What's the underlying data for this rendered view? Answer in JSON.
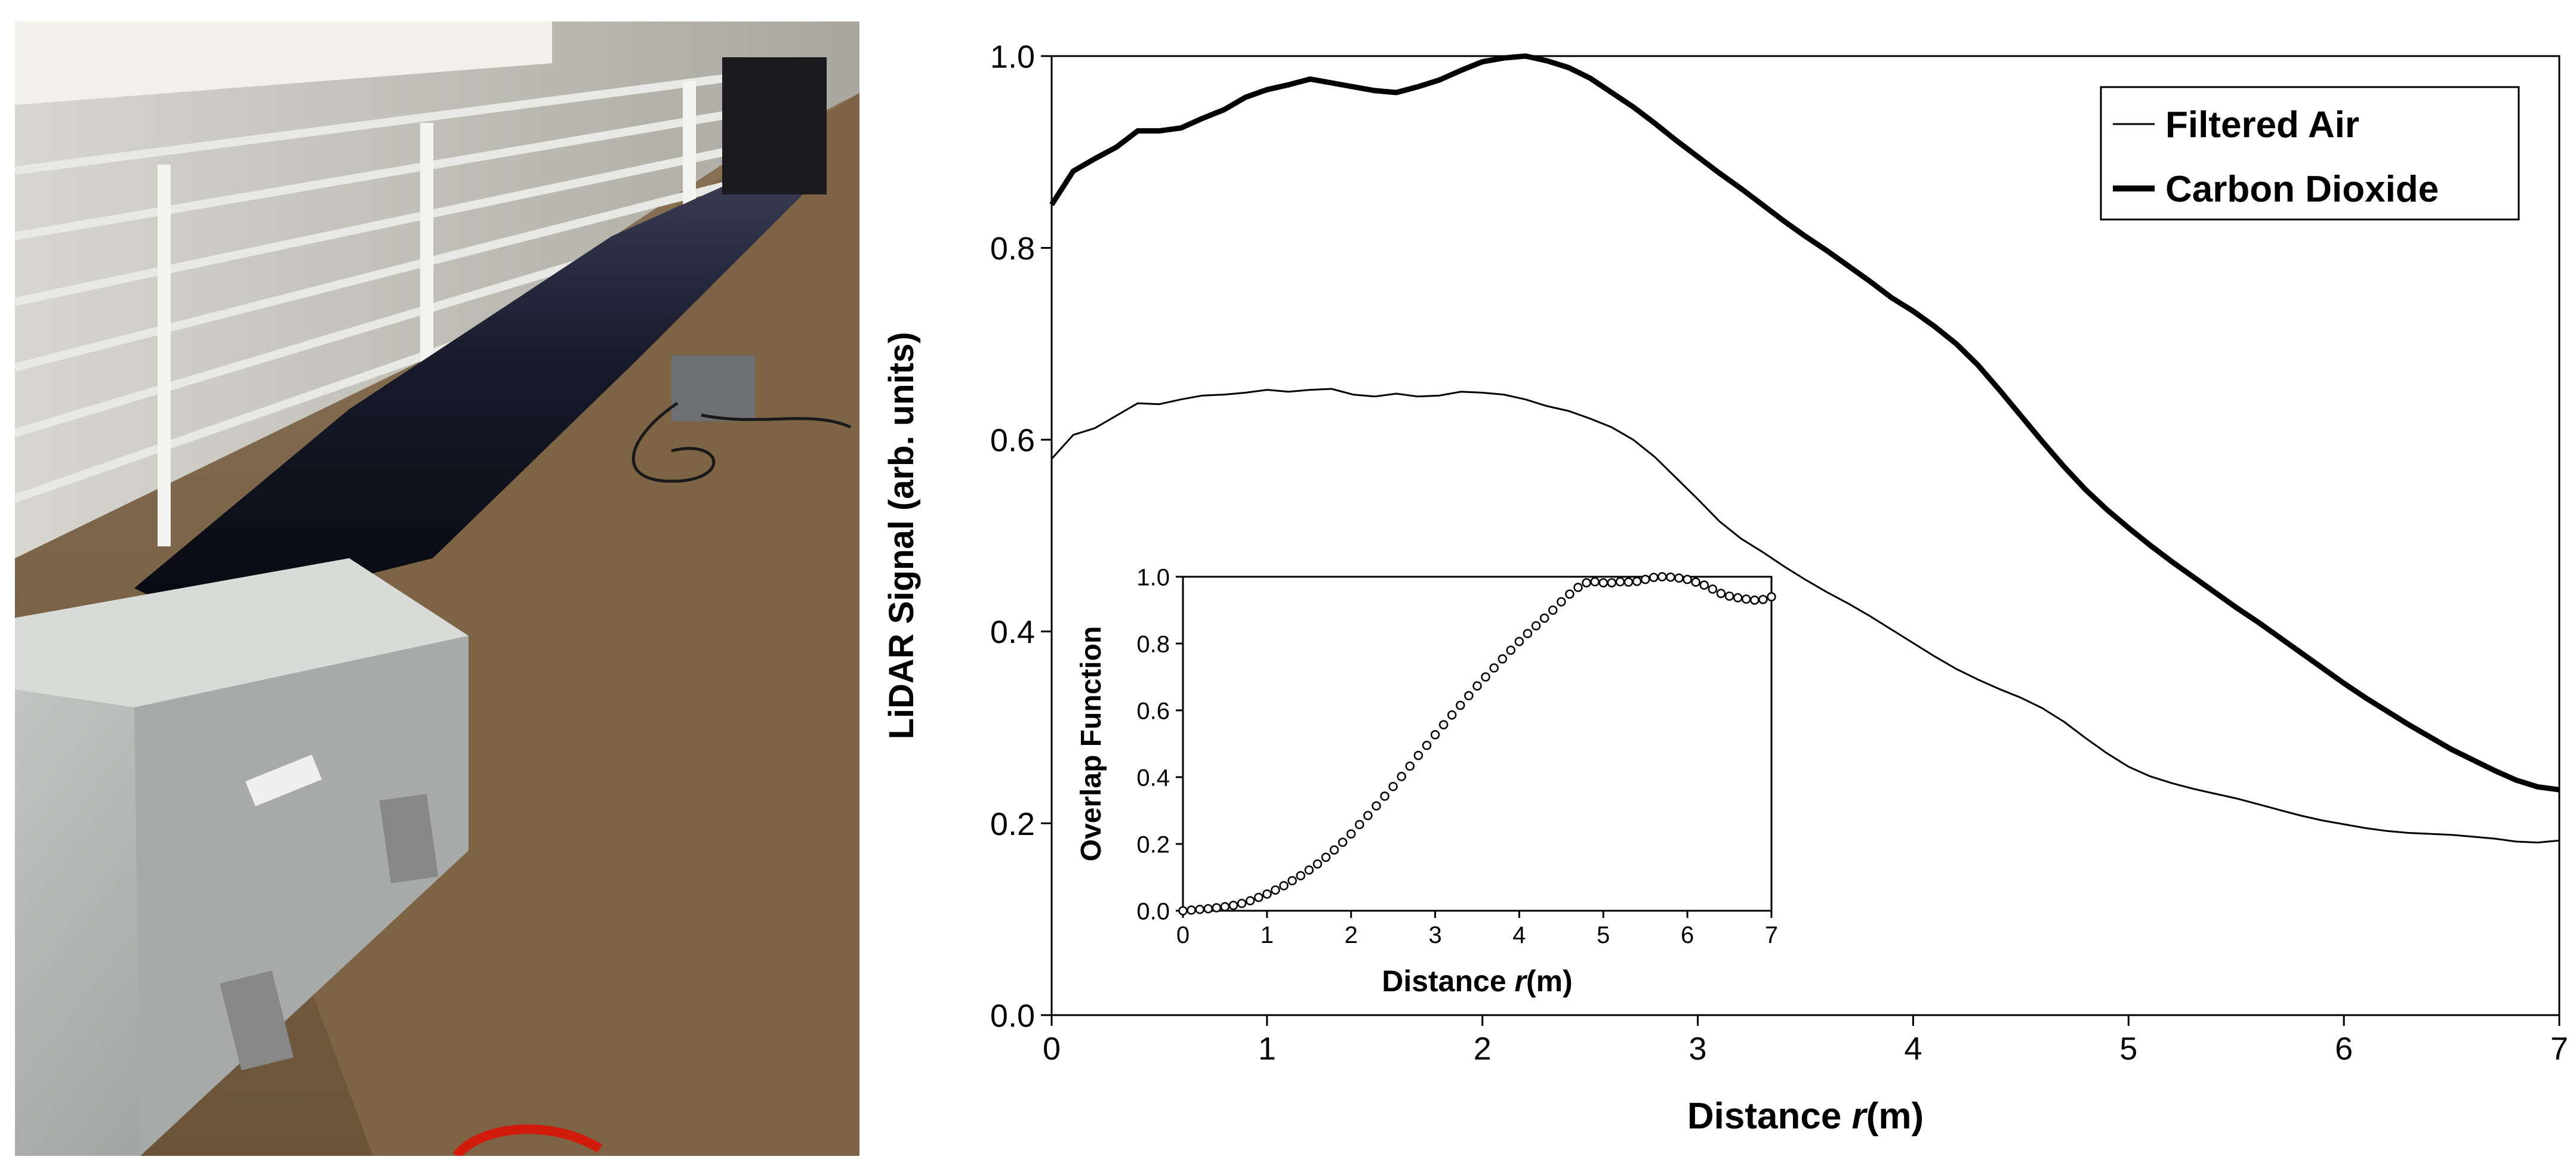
{
  "figure": {
    "photo_description_icon": "lidar-test-tube-photo"
  },
  "chart_data": [
    {
      "type": "line",
      "xlabel_prefix": "Distance ",
      "xlabel_italic": "r",
      "xlabel_suffix": "(m)",
      "ylabel": "LiDAR Signal (arb. units)",
      "xlim": [
        0,
        7
      ],
      "ylim": [
        0,
        1.0
      ],
      "xticks": [
        "0",
        "1",
        "2",
        "3",
        "4",
        "5",
        "6",
        "7"
      ],
      "yticks": [
        "0.0",
        "0.2",
        "0.4",
        "0.6",
        "0.8",
        "1.0"
      ],
      "grid": false,
      "legend_position": "top-right",
      "series": [
        {
          "name": "Filtered Air",
          "color": "#000000",
          "style": "thin",
          "x": [
            0,
            0.1,
            0.2,
            0.3,
            0.4,
            0.5,
            0.6,
            0.7,
            0.8,
            0.9,
            1.0,
            1.1,
            1.2,
            1.3,
            1.4,
            1.5,
            1.6,
            1.7,
            1.8,
            1.9,
            2.0,
            2.1,
            2.2,
            2.3,
            2.4,
            2.5,
            2.6,
            2.7,
            2.8,
            2.9,
            3.0,
            3.1,
            3.2,
            3.3,
            3.4,
            3.5,
            3.6,
            3.7,
            3.8,
            3.9,
            4.0,
            4.1,
            4.2,
            4.3,
            4.4,
            4.5,
            4.6,
            4.7,
            4.8,
            4.9,
            5.0,
            5.1,
            5.2,
            5.3,
            5.4,
            5.5,
            5.6,
            5.7,
            5.8,
            5.9,
            6.0,
            6.1,
            6.2,
            6.3,
            6.4,
            6.5,
            6.6,
            6.7,
            6.8,
            6.9,
            7.0
          ],
          "y": [
            0.58,
            0.605,
            0.612,
            0.625,
            0.638,
            0.637,
            0.642,
            0.646,
            0.647,
            0.649,
            0.652,
            0.65,
            0.652,
            0.653,
            0.647,
            0.645,
            0.648,
            0.645,
            0.646,
            0.65,
            0.649,
            0.647,
            0.642,
            0.635,
            0.63,
            0.622,
            0.613,
            0.6,
            0.582,
            0.56,
            0.538,
            0.515,
            0.497,
            0.483,
            0.468,
            0.454,
            0.441,
            0.429,
            0.416,
            0.402,
            0.388,
            0.374,
            0.361,
            0.35,
            0.34,
            0.331,
            0.32,
            0.306,
            0.289,
            0.273,
            0.259,
            0.249,
            0.242,
            0.236,
            0.231,
            0.226,
            0.22,
            0.214,
            0.208,
            0.203,
            0.199,
            0.195,
            0.192,
            0.19,
            0.189,
            0.188,
            0.186,
            0.184,
            0.181,
            0.18,
            0.182
          ]
        },
        {
          "name": "Carbon Dioxide",
          "color": "#000000",
          "style": "thick",
          "x": [
            0,
            0.1,
            0.2,
            0.3,
            0.4,
            0.5,
            0.6,
            0.7,
            0.8,
            0.9,
            1.0,
            1.1,
            1.2,
            1.3,
            1.4,
            1.5,
            1.6,
            1.7,
            1.8,
            1.9,
            2.0,
            2.1,
            2.2,
            2.3,
            2.4,
            2.5,
            2.6,
            2.7,
            2.8,
            2.9,
            3.0,
            3.1,
            3.2,
            3.3,
            3.4,
            3.5,
            3.6,
            3.7,
            3.8,
            3.9,
            4.0,
            4.1,
            4.2,
            4.3,
            4.4,
            4.5,
            4.6,
            4.7,
            4.8,
            4.9,
            5.0,
            5.1,
            5.2,
            5.3,
            5.4,
            5.5,
            5.6,
            5.7,
            5.8,
            5.9,
            6.0,
            6.1,
            6.2,
            6.3,
            6.4,
            6.5,
            6.6,
            6.7,
            6.8,
            6.9,
            7.0
          ],
          "y": [
            0.845,
            0.88,
            0.893,
            0.905,
            0.922,
            0.922,
            0.925,
            0.935,
            0.944,
            0.957,
            0.965,
            0.97,
            0.976,
            0.972,
            0.968,
            0.964,
            0.962,
            0.968,
            0.975,
            0.985,
            0.994,
            0.998,
            1.0,
            0.995,
            0.988,
            0.977,
            0.962,
            0.947,
            0.93,
            0.912,
            0.895,
            0.878,
            0.862,
            0.845,
            0.828,
            0.812,
            0.797,
            0.781,
            0.765,
            0.748,
            0.734,
            0.718,
            0.7,
            0.678,
            0.652,
            0.625,
            0.598,
            0.572,
            0.548,
            0.527,
            0.508,
            0.49,
            0.473,
            0.457,
            0.441,
            0.425,
            0.41,
            0.394,
            0.378,
            0.362,
            0.346,
            0.331,
            0.317,
            0.303,
            0.29,
            0.277,
            0.266,
            0.255,
            0.245,
            0.238,
            0.235
          ]
        }
      ]
    },
    {
      "type": "scatter",
      "xlabel_prefix": "Distance ",
      "xlabel_italic": "r",
      "xlabel_suffix": "(m)",
      "ylabel": "Overlap Function",
      "xlim": [
        0,
        7
      ],
      "ylim": [
        0,
        1.0
      ],
      "xticks": [
        "0",
        "1",
        "2",
        "3",
        "4",
        "5",
        "6",
        "7"
      ],
      "yticks": [
        "0.0",
        "0.2",
        "0.4",
        "0.6",
        "0.8",
        "1.0"
      ],
      "grid": false,
      "series": [
        {
          "color": "#000000",
          "marker": "open-circle",
          "x": [
            0,
            0.1,
            0.2,
            0.3,
            0.4,
            0.5,
            0.6,
            0.7,
            0.8,
            0.9,
            1.0,
            1.1,
            1.2,
            1.3,
            1.4,
            1.5,
            1.6,
            1.7,
            1.8,
            1.9,
            2.0,
            2.1,
            2.2,
            2.3,
            2.4,
            2.5,
            2.6,
            2.7,
            2.8,
            2.9,
            3.0,
            3.1,
            3.2,
            3.3,
            3.4,
            3.5,
            3.6,
            3.7,
            3.8,
            3.9,
            4.0,
            4.1,
            4.2,
            4.3,
            4.4,
            4.5,
            4.6,
            4.7,
            4.8,
            4.9,
            5.0,
            5.1,
            5.2,
            5.3,
            5.4,
            5.5,
            5.6,
            5.7,
            5.8,
            5.9,
            6.0,
            6.1,
            6.2,
            6.3,
            6.4,
            6.5,
            6.6,
            6.7,
            6.8,
            6.9,
            7.0
          ],
          "y": [
            0.0,
            0.002,
            0.004,
            0.006,
            0.009,
            0.012,
            0.016,
            0.022,
            0.03,
            0.04,
            0.05,
            0.062,
            0.075,
            0.09,
            0.105,
            0.122,
            0.14,
            0.16,
            0.182,
            0.205,
            0.23,
            0.258,
            0.285,
            0.314,
            0.343,
            0.372,
            0.402,
            0.433,
            0.465,
            0.495,
            0.527,
            0.557,
            0.586,
            0.615,
            0.644,
            0.673,
            0.7,
            0.727,
            0.754,
            0.78,
            0.806,
            0.83,
            0.853,
            0.876,
            0.9,
            0.925,
            0.948,
            0.968,
            0.982,
            0.985,
            0.982,
            0.982,
            0.985,
            0.984,
            0.986,
            0.992,
            0.998,
            1.0,
            0.999,
            0.996,
            0.992,
            0.984,
            0.975,
            0.963,
            0.95,
            0.942,
            0.937,
            0.933,
            0.93,
            0.932,
            0.94
          ]
        }
      ]
    }
  ]
}
